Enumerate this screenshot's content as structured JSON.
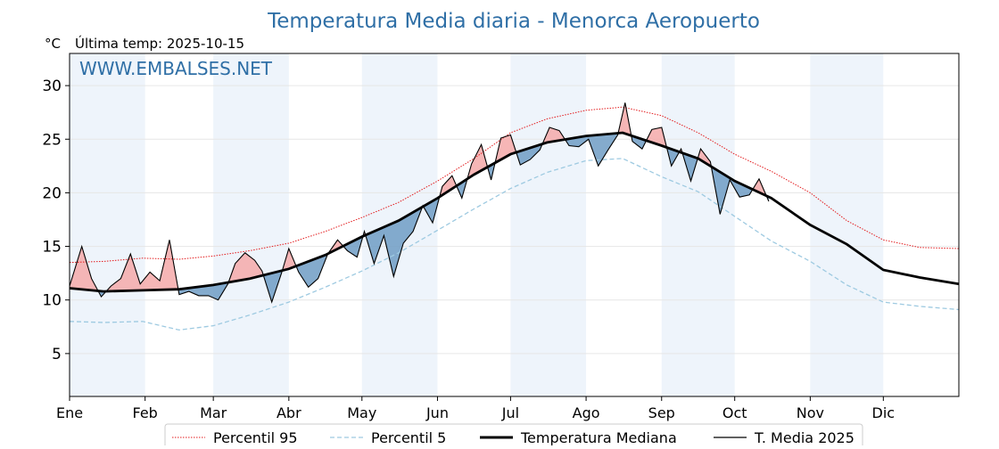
{
  "chart_data": {
    "type": "line",
    "title": "Temperatura Media diaria - Menorca Aeropuerto",
    "unit_label": "°C",
    "last_temp_label": "Última temp: 2025-10-15",
    "watermark": "WWW.EMBALSES.NET",
    "ylim": [
      1,
      33
    ],
    "y_ticks": [
      5,
      10,
      15,
      20,
      25,
      30
    ],
    "xlim": [
      1,
      366
    ],
    "months": [
      {
        "label": "Ene",
        "day": 1
      },
      {
        "label": "Feb",
        "day": 32
      },
      {
        "label": "Mar",
        "day": 60
      },
      {
        "label": "Abr",
        "day": 91
      },
      {
        "label": "May",
        "day": 121
      },
      {
        "label": "Jun",
        "day": 152
      },
      {
        "label": "Jul",
        "day": 182
      },
      {
        "label": "Ago",
        "day": 213
      },
      {
        "label": "Sep",
        "day": 244
      },
      {
        "label": "Oct",
        "day": 274
      },
      {
        "label": "Nov",
        "day": 305
      },
      {
        "label": "Dic",
        "day": 335
      }
    ],
    "grid": true,
    "legend_position": "bottom",
    "series": [
      {
        "name": "Percentil 95",
        "style": "dotted",
        "color": "#e31a1c",
        "points": [
          [
            1,
            13.5
          ],
          [
            15,
            13.6
          ],
          [
            31,
            13.9
          ],
          [
            46,
            13.8
          ],
          [
            60,
            14.1
          ],
          [
            75,
            14.6
          ],
          [
            91,
            15.3
          ],
          [
            106,
            16.4
          ],
          [
            121,
            17.7
          ],
          [
            136,
            19.1
          ],
          [
            152,
            21.1
          ],
          [
            167,
            23.2
          ],
          [
            182,
            25.6
          ],
          [
            197,
            26.9
          ],
          [
            213,
            27.7
          ],
          [
            228,
            28.0
          ],
          [
            244,
            27.2
          ],
          [
            259,
            25.6
          ],
          [
            274,
            23.6
          ],
          [
            289,
            22.0
          ],
          [
            305,
            20.0
          ],
          [
            320,
            17.4
          ],
          [
            335,
            15.6
          ],
          [
            350,
            14.9
          ],
          [
            366,
            14.8
          ]
        ]
      },
      {
        "name": "Percentil 5",
        "style": "dashed",
        "color": "#9ecae1",
        "points": [
          [
            1,
            8.0
          ],
          [
            15,
            7.9
          ],
          [
            31,
            8.0
          ],
          [
            46,
            7.2
          ],
          [
            60,
            7.6
          ],
          [
            75,
            8.6
          ],
          [
            91,
            9.8
          ],
          [
            106,
            11.2
          ],
          [
            121,
            12.7
          ],
          [
            136,
            14.4
          ],
          [
            152,
            16.5
          ],
          [
            167,
            18.5
          ],
          [
            182,
            20.4
          ],
          [
            197,
            21.9
          ],
          [
            213,
            23.0
          ],
          [
            228,
            23.2
          ],
          [
            244,
            21.5
          ],
          [
            259,
            20.1
          ],
          [
            274,
            17.8
          ],
          [
            289,
            15.5
          ],
          [
            305,
            13.6
          ],
          [
            320,
            11.4
          ],
          [
            335,
            9.8
          ],
          [
            350,
            9.4
          ],
          [
            366,
            9.1
          ]
        ]
      },
      {
        "name": "Temperatura Mediana",
        "style": "thick",
        "color": "#000000",
        "points": [
          [
            1,
            11.1
          ],
          [
            15,
            10.8
          ],
          [
            31,
            10.9
          ],
          [
            46,
            11.0
          ],
          [
            60,
            11.4
          ],
          [
            75,
            12.0
          ],
          [
            91,
            12.9
          ],
          [
            106,
            14.2
          ],
          [
            121,
            15.9
          ],
          [
            136,
            17.4
          ],
          [
            152,
            19.5
          ],
          [
            167,
            21.7
          ],
          [
            182,
            23.6
          ],
          [
            197,
            24.7
          ],
          [
            213,
            25.3
          ],
          [
            228,
            25.6
          ],
          [
            244,
            24.4
          ],
          [
            259,
            23.2
          ],
          [
            274,
            21.1
          ],
          [
            289,
            19.5
          ],
          [
            305,
            17.0
          ],
          [
            320,
            15.2
          ],
          [
            335,
            12.8
          ],
          [
            350,
            12.1
          ],
          [
            366,
            11.5
          ]
        ]
      },
      {
        "name": "T. Media 2025",
        "style": "thin",
        "color": "#000000",
        "points": [
          [
            1,
            11.3
          ],
          [
            6,
            15.0
          ],
          [
            10,
            12.0
          ],
          [
            14,
            10.3
          ],
          [
            18,
            11.3
          ],
          [
            22,
            12.0
          ],
          [
            26,
            14.3
          ],
          [
            30,
            11.5
          ],
          [
            34,
            12.6
          ],
          [
            38,
            11.8
          ],
          [
            42,
            15.6
          ],
          [
            46,
            10.5
          ],
          [
            50,
            10.8
          ],
          [
            54,
            10.4
          ],
          [
            58,
            10.4
          ],
          [
            62,
            10.0
          ],
          [
            66,
            11.5
          ],
          [
            69,
            13.4
          ],
          [
            73,
            14.4
          ],
          [
            77,
            13.7
          ],
          [
            80,
            12.7
          ],
          [
            84,
            9.8
          ],
          [
            88,
            12.5
          ],
          [
            91,
            14.8
          ],
          [
            95,
            12.6
          ],
          [
            99,
            11.2
          ],
          [
            103,
            12.0
          ],
          [
            107,
            14.3
          ],
          [
            111,
            15.6
          ],
          [
            115,
            14.6
          ],
          [
            119,
            14.0
          ],
          [
            122,
            16.4
          ],
          [
            126,
            13.4
          ],
          [
            130,
            16.0
          ],
          [
            134,
            12.2
          ],
          [
            138,
            15.3
          ],
          [
            142,
            16.4
          ],
          [
            146,
            18.8
          ],
          [
            150,
            17.2
          ],
          [
            154,
            20.6
          ],
          [
            158,
            21.6
          ],
          [
            162,
            19.5
          ],
          [
            166,
            22.7
          ],
          [
            170,
            24.5
          ],
          [
            174,
            21.2
          ],
          [
            178,
            25.1
          ],
          [
            182,
            25.4
          ],
          [
            186,
            22.6
          ],
          [
            190,
            23.1
          ],
          [
            194,
            24.0
          ],
          [
            198,
            26.1
          ],
          [
            202,
            25.8
          ],
          [
            206,
            24.4
          ],
          [
            210,
            24.3
          ],
          [
            214,
            25.0
          ],
          [
            218,
            22.5
          ],
          [
            222,
            24.0
          ],
          [
            226,
            25.4
          ],
          [
            229,
            28.4
          ],
          [
            232,
            24.8
          ],
          [
            236,
            24.1
          ],
          [
            240,
            25.9
          ],
          [
            244,
            26.1
          ],
          [
            248,
            22.5
          ],
          [
            252,
            24.1
          ],
          [
            256,
            21.1
          ],
          [
            260,
            24.1
          ],
          [
            264,
            22.9
          ],
          [
            268,
            18.0
          ],
          [
            272,
            21.2
          ],
          [
            276,
            19.6
          ],
          [
            280,
            19.8
          ],
          [
            284,
            21.3
          ],
          [
            288,
            19.2
          ]
        ]
      }
    ]
  },
  "legend": [
    {
      "label": "Percentil 95"
    },
    {
      "label": "Percentil 5"
    },
    {
      "label": "Temperatura Mediana"
    },
    {
      "label": "T. Media 2025"
    }
  ],
  "colors": {
    "above_fill": "#f4a9a9",
    "below_fill": "#6f9cc4",
    "band": "#eef4fb",
    "title": "#2f6fa6"
  }
}
